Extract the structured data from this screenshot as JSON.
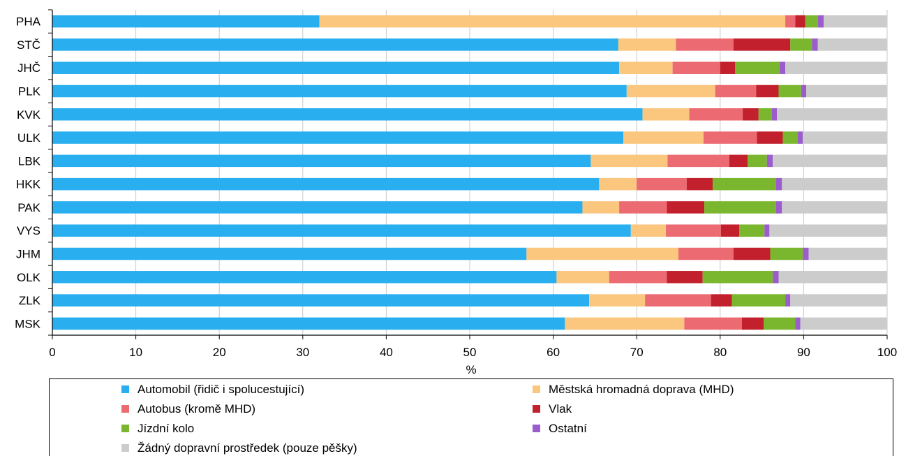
{
  "chart_data": {
    "type": "bar",
    "orientation": "horizontal",
    "stacked": true,
    "categories": [
      "PHA",
      "STČ",
      "JHČ",
      "PLK",
      "KVK",
      "ULK",
      "LBK",
      "HKK",
      "PAK",
      "VYS",
      "JHM",
      "OLK",
      "ZLK",
      "MSK"
    ],
    "series": [
      {
        "name": "Automobil (řidič i spolucestující)",
        "color": "#29aff0",
        "values": [
          32.0,
          67.8,
          67.9,
          68.8,
          70.7,
          68.4,
          64.5,
          65.5,
          63.5,
          69.3,
          56.8,
          60.4,
          64.3,
          61.4
        ]
      },
      {
        "name": "Městská hromadná doprava (MHD)",
        "color": "#fbc67e",
        "values": [
          55.8,
          6.9,
          6.4,
          10.6,
          5.6,
          9.6,
          9.2,
          4.5,
          4.4,
          4.2,
          18.2,
          6.3,
          6.7,
          14.3
        ]
      },
      {
        "name": "Autobus (kromě MHD)",
        "color": "#ec6b73",
        "values": [
          1.2,
          6.9,
          5.7,
          4.9,
          6.4,
          6.4,
          7.4,
          6.0,
          5.7,
          6.6,
          6.6,
          6.9,
          7.9,
          6.9
        ]
      },
      {
        "name": "Vlak",
        "color": "#c2202c",
        "values": [
          1.2,
          6.8,
          1.8,
          2.7,
          1.9,
          3.1,
          2.2,
          3.1,
          4.5,
          2.2,
          4.4,
          4.3,
          2.5,
          2.6
        ]
      },
      {
        "name": "Jízdní kolo",
        "color": "#7ab72e",
        "values": [
          1.5,
          2.6,
          5.3,
          2.7,
          1.6,
          1.8,
          2.3,
          7.6,
          8.6,
          3.0,
          3.9,
          8.4,
          6.4,
          3.8
        ]
      },
      {
        "name": "Ostatní",
        "color": "#9b5ccc",
        "values": [
          0.7,
          0.7,
          0.7,
          0.6,
          0.6,
          0.6,
          0.7,
          0.7,
          0.7,
          0.6,
          0.7,
          0.7,
          0.6,
          0.6
        ]
      },
      {
        "name": "Žádný dopravní prostředek (pouze pěšky)",
        "color": "#cccccc",
        "values": [
          7.6,
          8.3,
          12.2,
          9.7,
          13.2,
          10.1,
          13.7,
          12.6,
          12.6,
          14.1,
          9.4,
          13.0,
          11.6,
          10.4
        ]
      }
    ],
    "xlim": [
      0,
      100
    ],
    "xticks": [
      0,
      10,
      20,
      30,
      40,
      50,
      60,
      70,
      80,
      90,
      100
    ],
    "xlabel": "%",
    "ylabel": "",
    "title": "",
    "grid": "vertical",
    "legend_position": "bottom"
  },
  "colors": {
    "grid": "#c8c8c8",
    "axis": "#000000"
  }
}
